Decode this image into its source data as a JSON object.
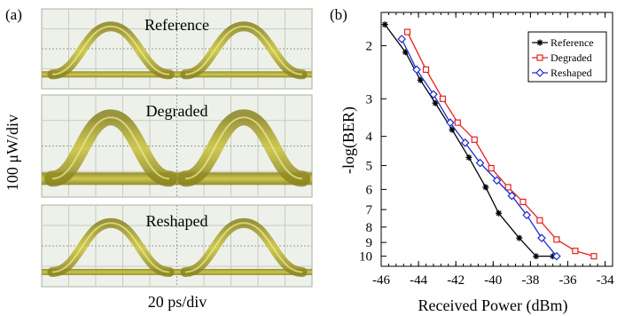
{
  "figure": {
    "panel_a_label": "(a)",
    "panel_b_label": "(b)"
  },
  "eye_panel": {
    "ylabel": "100 μW/div",
    "xlabel": "20 ps/div",
    "panels": [
      {
        "label": "Reference",
        "color": "#c9c23a"
      },
      {
        "label": "Degraded",
        "color": "#c9c23a"
      },
      {
        "label": "Reshaped",
        "color": "#c9c23a"
      }
    ]
  },
  "chart_data": {
    "type": "line",
    "title": "",
    "xlabel": "Received Power (dBm)",
    "ylabel": "-log(BER)",
    "xlim": [
      -46,
      -33.6
    ],
    "xticks": [
      -46,
      -44,
      -42,
      -40,
      -38,
      -36,
      -34
    ],
    "yscale": "log-log-BER",
    "ylim": [
      1.55,
      10.8
    ],
    "yticks": [
      2,
      3,
      4,
      5,
      6,
      7,
      8,
      9,
      10
    ],
    "legend_position": "top-right",
    "grid": false,
    "series": [
      {
        "name": "Reference",
        "color": "#000000",
        "marker": "asterisk",
        "x": [
          -45.8,
          -44.7,
          -43.9,
          -43.1,
          -42.2,
          -41.3,
          -40.4,
          -39.7,
          -38.6,
          -37.7,
          -36.8
        ],
        "y": [
          1.7,
          2.1,
          2.6,
          3.1,
          3.8,
          4.7,
          5.9,
          7.2,
          8.7,
          10.0,
          10.0
        ]
      },
      {
        "name": "Degraded",
        "color": "#e8201e",
        "marker": "square",
        "x": [
          -44.6,
          -43.6,
          -42.7,
          -41.9,
          -41.0,
          -40.1,
          -39.2,
          -38.4,
          -37.5,
          -36.6,
          -35.6,
          -34.6
        ],
        "y": [
          1.8,
          2.4,
          3.0,
          3.6,
          4.1,
          5.1,
          5.9,
          6.6,
          7.6,
          8.8,
          9.6,
          10.0
        ]
      },
      {
        "name": "Reshaped",
        "color": "#1d2bd6",
        "marker": "diamond",
        "x": [
          -44.9,
          -44.1,
          -43.2,
          -42.3,
          -41.5,
          -40.7,
          -39.8,
          -39.0,
          -38.2,
          -37.4,
          -36.6
        ],
        "y": [
          1.9,
          2.4,
          2.9,
          3.6,
          4.2,
          4.9,
          5.6,
          6.3,
          7.3,
          8.7,
          10.0
        ]
      }
    ]
  }
}
